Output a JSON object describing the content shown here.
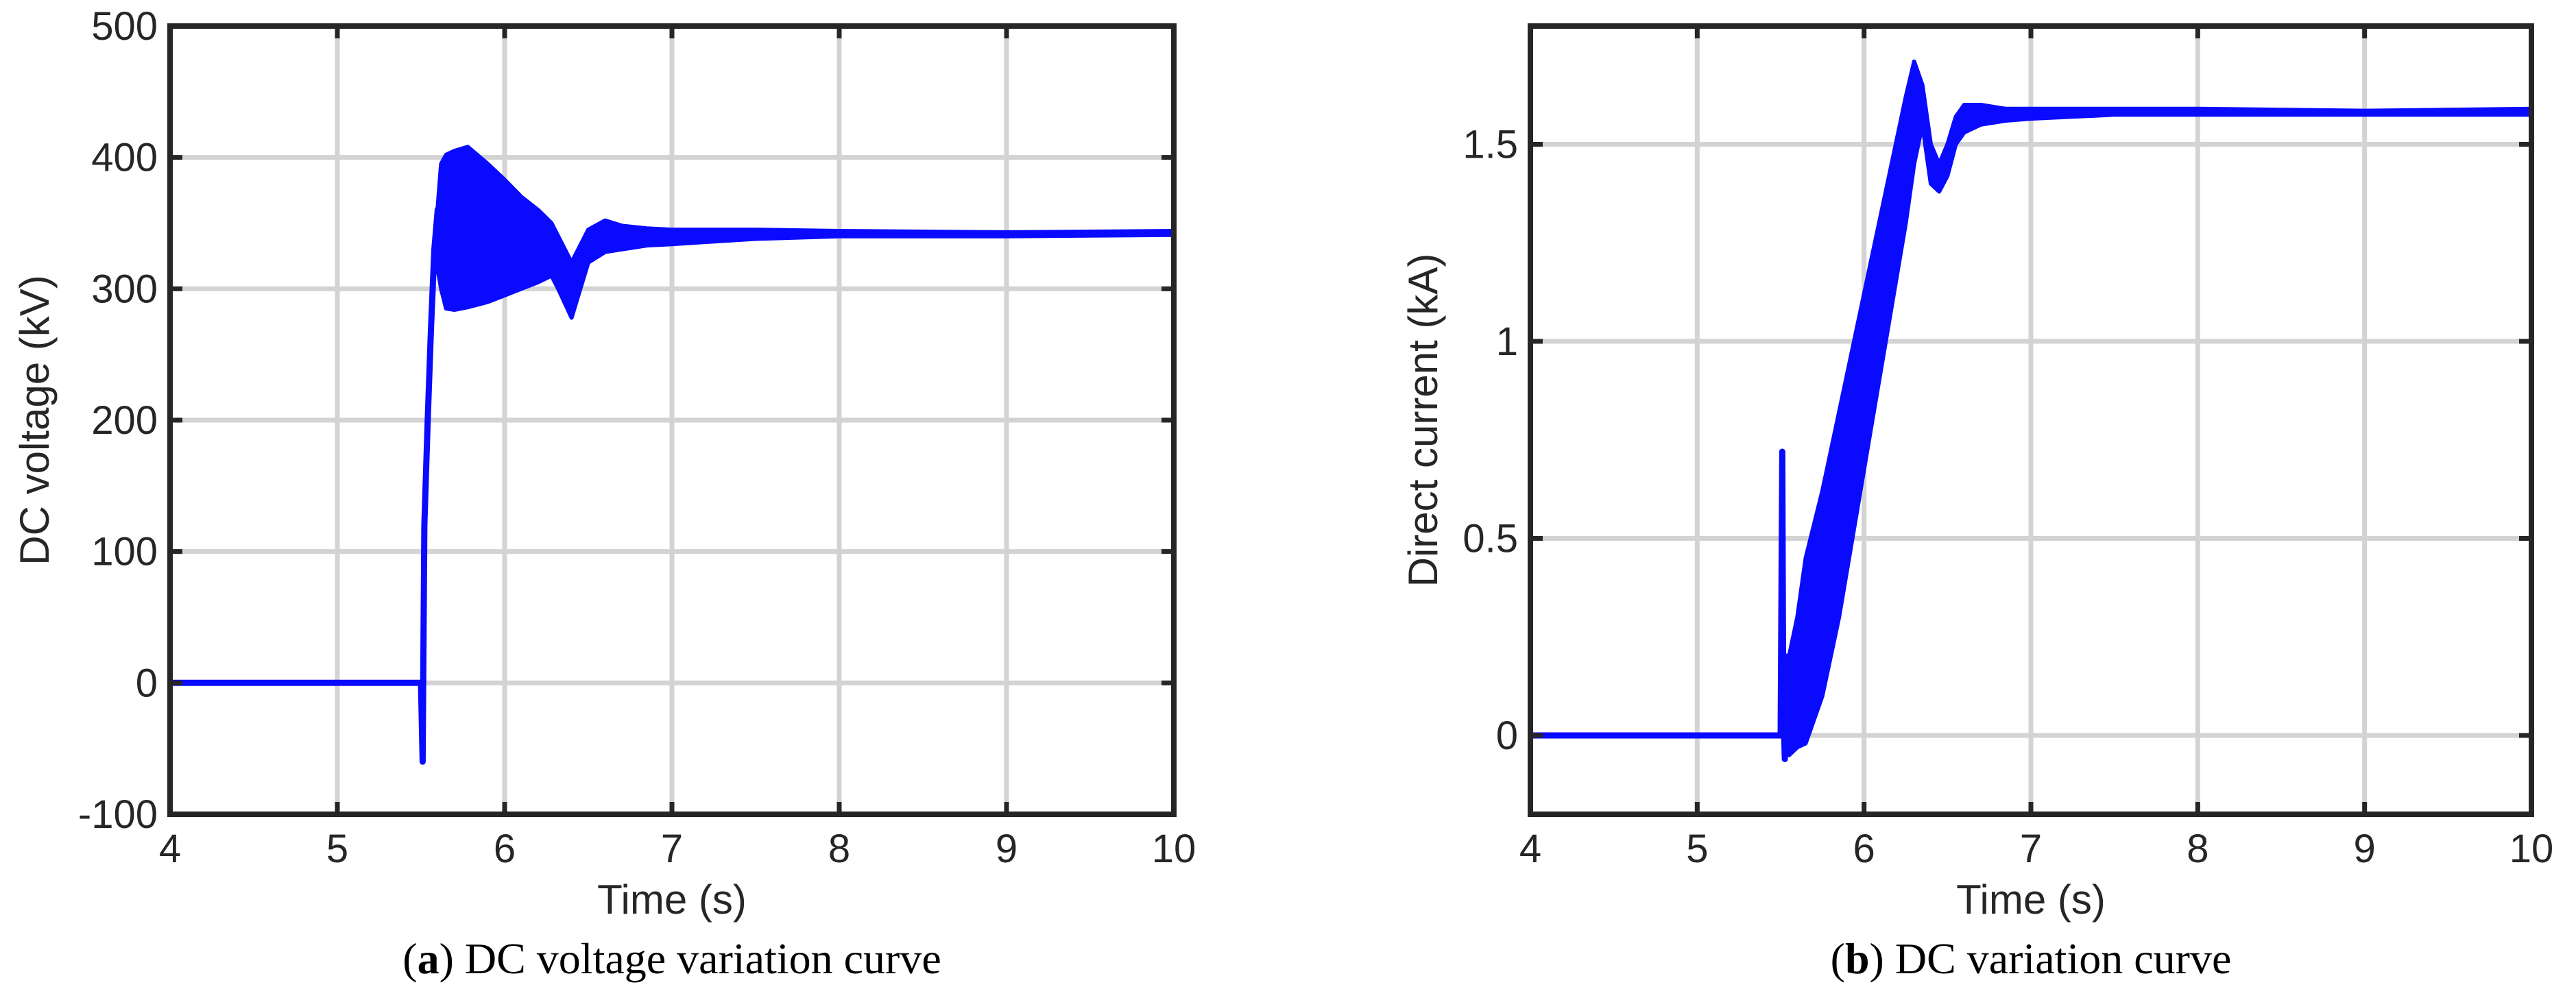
{
  "colors": {
    "series": "#0a0aff",
    "axes": "#262626",
    "grid": "#d3d3d3",
    "background": "#ffffff"
  },
  "chart_data": [
    {
      "type": "line",
      "panel": "a",
      "caption": {
        "letter": "a",
        "text": "DC voltage variation curve"
      },
      "xlabel": "Time (s)",
      "ylabel": "DC voltage (kV)",
      "xlim": [
        4,
        10
      ],
      "ylim": [
        -100,
        500
      ],
      "xticks": [
        4,
        5,
        6,
        7,
        8,
        9,
        10
      ],
      "yticks": [
        -100,
        0,
        100,
        200,
        300,
        400,
        500
      ],
      "grid": true,
      "series": [
        {
          "x": [
            4.0,
            5.48,
            5.5,
            5.51,
            5.52,
            5.54,
            5.56,
            5.58,
            5.6,
            5.65,
            5.7,
            5.78,
            5.9,
            6.0,
            6.1,
            6.2,
            6.3,
            6.35,
            6.4,
            6.45,
            6.5,
            6.6,
            6.75,
            7.0,
            7.5,
            8.0,
            9.0,
            10.0
          ],
          "y": [
            0,
            0,
            0,
            -60,
            120,
            200,
            270,
            330,
            360,
            375,
            370,
            360,
            350,
            345,
            340,
            335,
            325,
            300,
            282,
            305,
            335,
            348,
            340,
            338,
            341,
            342,
            341,
            342
          ]
        }
      ],
      "envelope": {
        "x": [
          5.58,
          5.62,
          5.65,
          5.7,
          5.78,
          5.9,
          6.0,
          6.1,
          6.2,
          6.28,
          6.32,
          6.4,
          6.5,
          6.6,
          6.7,
          6.85,
          7.0,
          7.5,
          8.0,
          9.0,
          10.0
        ],
        "upper": [
          330,
          395,
          402,
          405,
          408,
          395,
          383,
          370,
          360,
          350,
          340,
          320,
          345,
          352,
          348,
          346,
          345,
          345,
          344,
          343,
          344
        ],
        "lower": [
          330,
          300,
          285,
          284,
          286,
          290,
          295,
          300,
          305,
          310,
          300,
          278,
          320,
          328,
          330,
          333,
          334,
          338,
          340,
          340,
          341
        ]
      }
    },
    {
      "type": "line",
      "panel": "b",
      "caption": {
        "letter": "b",
        "text": "DC variation curve"
      },
      "xlabel": "Time (s)",
      "ylabel": "Direct current (kA)",
      "xlim": [
        4,
        10
      ],
      "ylim": [
        -0.2,
        1.8
      ],
      "xticks": [
        4,
        5,
        6,
        7,
        8,
        9,
        10
      ],
      "yticks": [
        0,
        0.5,
        1,
        1.5
      ],
      "ytick_labels": [
        "0",
        "0.5",
        "1",
        "1.5"
      ],
      "grid": true,
      "series": [
        {
          "x": [
            4.0,
            5.5,
            5.51,
            5.515,
            5.525,
            5.54,
            5.56,
            5.58,
            5.6,
            5.65,
            5.75,
            5.85,
            5.95,
            6.05,
            6.15,
            6.25,
            6.3,
            6.35,
            6.4,
            6.45,
            6.5,
            6.55,
            6.6,
            6.7,
            6.8,
            7.0,
            7.5,
            8.0,
            9.0,
            10.0
          ],
          "y": [
            0,
            0,
            0.72,
            0.1,
            -0.06,
            0.2,
            0.15,
            0.05,
            0.02,
            0.1,
            0.3,
            0.55,
            0.8,
            1.05,
            1.3,
            1.55,
            1.69,
            1.62,
            1.48,
            1.4,
            1.46,
            1.53,
            1.56,
            1.57,
            1.575,
            1.58,
            1.585,
            1.585,
            1.58,
            1.58
          ]
        }
      ],
      "envelope": {
        "x": [
          5.55,
          5.6,
          5.65,
          5.75,
          5.85,
          5.95,
          6.05,
          6.15,
          6.25,
          6.3,
          6.35,
          6.4,
          6.45,
          6.5,
          6.55,
          6.6,
          6.7,
          6.85,
          7.0,
          7.5,
          8.0,
          9.0,
          10.0
        ],
        "upper": [
          0.2,
          0.3,
          0.45,
          0.62,
          0.82,
          1.02,
          1.22,
          1.42,
          1.62,
          1.71,
          1.65,
          1.5,
          1.45,
          1.5,
          1.57,
          1.6,
          1.6,
          1.59,
          1.59,
          1.59,
          1.59,
          1.585,
          1.59
        ],
        "lower": [
          -0.05,
          -0.03,
          -0.02,
          0.1,
          0.3,
          0.55,
          0.8,
          1.05,
          1.3,
          1.45,
          1.55,
          1.4,
          1.38,
          1.42,
          1.5,
          1.53,
          1.55,
          1.56,
          1.565,
          1.575,
          1.575,
          1.575,
          1.575
        ]
      }
    }
  ]
}
